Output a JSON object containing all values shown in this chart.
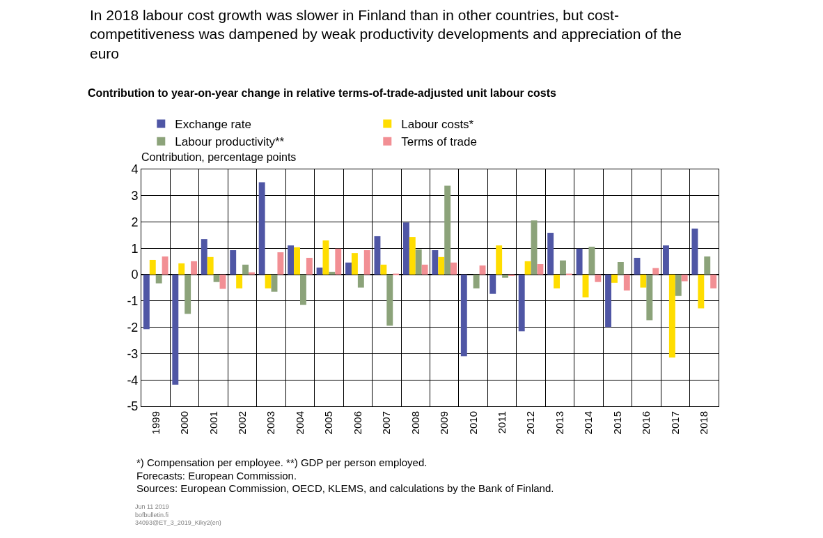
{
  "chart_data": {
    "type": "bar",
    "title": "In 2018 labour cost growth was slower in Finland than in other countries, but cost-competitiveness was dampened by weak productivity developments and appreciation of the euro",
    "subtitle": "Contribution to year-on-year change in relative terms-of-trade-adjusted unit labour costs",
    "ylabel": "Contribution, percentage points",
    "categories": [
      "1999",
      "2000",
      "2001",
      "2002",
      "2003",
      "2004",
      "2005",
      "2006",
      "2007",
      "2008",
      "2009",
      "2010",
      "2011",
      "2012",
      "2013",
      "2014",
      "2015",
      "2016",
      "2017",
      "2018"
    ],
    "series": [
      {
        "name": "Exchange rate",
        "color": "#4f56a5",
        "values": [
          -2.07,
          -4.18,
          1.35,
          0.93,
          3.51,
          1.11,
          0.27,
          0.46,
          1.46,
          1.98,
          0.93,
          -3.1,
          -0.73,
          -2.15,
          1.59,
          0.99,
          -1.99,
          0.64,
          1.11,
          1.75
        ]
      },
      {
        "name": "Labour costs*",
        "color": "#ffdd00",
        "values": [
          0.56,
          0.43,
          0.67,
          -0.52,
          -0.52,
          1.04,
          1.3,
          0.82,
          0.38,
          1.43,
          0.67,
          null,
          1.11,
          0.51,
          -0.52,
          -0.86,
          -0.31,
          -0.49,
          -3.15,
          -1.28
        ]
      },
      {
        "name": "Labour productivity**",
        "color": "#8ca37a",
        "values": [
          -0.33,
          -1.49,
          -0.28,
          0.38,
          -0.65,
          -1.15,
          0.11,
          -0.49,
          -1.94,
          0.96,
          3.38,
          -0.52,
          -0.12,
          2.06,
          0.54,
          1.06,
          0.48,
          -1.73,
          -0.81,
          0.69
        ]
      },
      {
        "name": "Terms of trade",
        "color": "#f28f94",
        "values": [
          0.69,
          0.51,
          -0.54,
          0.09,
          0.85,
          0.64,
          0.99,
          0.93,
          0.04,
          0.38,
          0.46,
          0.35,
          -0.04,
          0.4,
          0.04,
          -0.28,
          -0.6,
          0.25,
          -0.25,
          -0.52
        ]
      }
    ],
    "ylim": [
      -5,
      4
    ],
    "yticks": [
      -5,
      -4,
      -3,
      -2,
      -1,
      0,
      1,
      2,
      3,
      4
    ],
    "grid": true,
    "legend": "top left",
    "annotations": [
      "*) Compensation per employee. **) GDP per person employed.",
      "Forecasts: European Commission.",
      "Sources: European Commission, OECD, KLEMS, and calculations by the Bank of Finland.",
      "Jun 11 2019",
      "bofbulletin.fi",
      "34093@ET_3_2019_Kiky2(en)"
    ]
  }
}
